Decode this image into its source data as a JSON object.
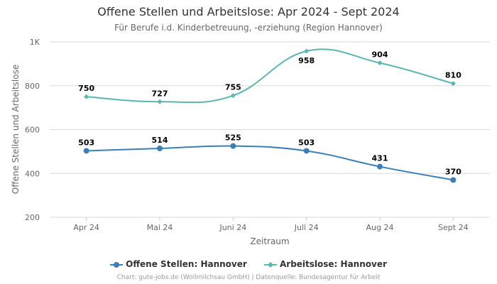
{
  "chart_data": {
    "type": "line",
    "title": "Offene Stellen und Arbeitslose: Apr 2024 - Sept 2024",
    "subtitle": "Für Berufe i.d. Kinderbetreuung, -erziehung (Region Hannover)",
    "xlabel": "Zeitraum",
    "ylabel": "Offene Stellen und Arbeitslose",
    "categories": [
      "Apr 24",
      "Mai 24",
      "Juni 24",
      "Juli 24",
      "Aug 24",
      "Sept 24"
    ],
    "yticks": [
      {
        "value": 200,
        "label": "200"
      },
      {
        "value": 400,
        "label": "400"
      },
      {
        "value": 600,
        "label": "600"
      },
      {
        "value": 800,
        "label": "800"
      },
      {
        "value": 1000,
        "label": "1K"
      }
    ],
    "ylim": [
      200,
      1000
    ],
    "grid": true,
    "legend_position": "bottom",
    "series": [
      {
        "name": "Offene Stellen: Hannover",
        "color": "#3a7fb8",
        "marker": "circle",
        "values": [
          503,
          514,
          525,
          503,
          431,
          370
        ],
        "labels": [
          "503",
          "514",
          "525",
          "503",
          "431",
          "370"
        ],
        "label_position": [
          "above",
          "above",
          "above",
          "above",
          "above",
          "above"
        ]
      },
      {
        "name": "Arbeitslose: Hannover",
        "color": "#5bb5b0",
        "marker": "diamond",
        "values": [
          750,
          727,
          755,
          958,
          904,
          810
        ],
        "labels": [
          "750",
          "727",
          "755",
          "958",
          "904",
          "810"
        ],
        "label_position": [
          "above",
          "above",
          "above",
          "below",
          "above",
          "above"
        ]
      }
    ]
  },
  "credits": "Chart: gute-jobs.de (Wollmilchsau GmbH) | Datenquelle: Bundesagentur für Arbeit"
}
